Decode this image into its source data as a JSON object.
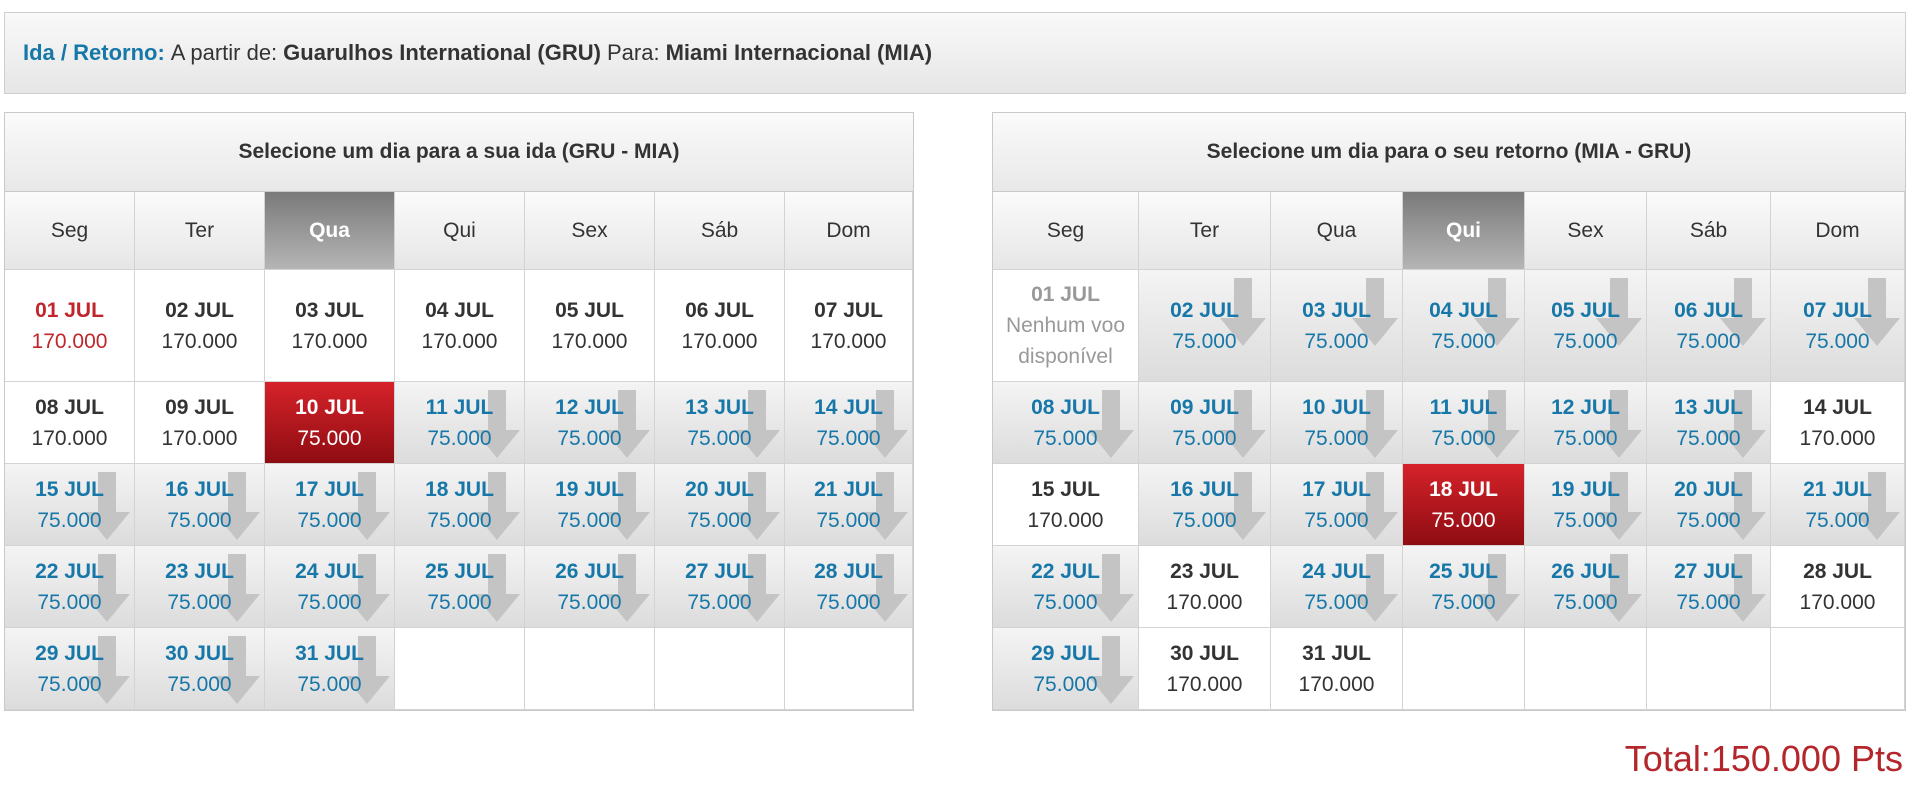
{
  "route": {
    "label": "Ida / Retorno:",
    "from_label": "A partir de:",
    "from": "Guarulhos International (GRU)",
    "to_label": "Para:",
    "to": "Miami Internacional (MIA)"
  },
  "outbound": {
    "title": "Selecione um dia para a sua ida (GRU - MIA)",
    "weekdays": [
      "Seg",
      "Ter",
      "Qua",
      "Qui",
      "Sex",
      "Sáb",
      "Dom"
    ],
    "selected_weekday": "Qua",
    "days": [
      {
        "date": "01 JUL",
        "price": "170.000",
        "status": "first"
      },
      {
        "date": "02 JUL",
        "price": "170.000",
        "status": "std"
      },
      {
        "date": "03 JUL",
        "price": "170.000",
        "status": "std"
      },
      {
        "date": "04 JUL",
        "price": "170.000",
        "status": "std"
      },
      {
        "date": "05 JUL",
        "price": "170.000",
        "status": "std"
      },
      {
        "date": "06 JUL",
        "price": "170.000",
        "status": "std"
      },
      {
        "date": "07 JUL",
        "price": "170.000",
        "status": "std"
      },
      {
        "date": "08 JUL",
        "price": "170.000",
        "status": "std"
      },
      {
        "date": "09 JUL",
        "price": "170.000",
        "status": "std"
      },
      {
        "date": "10 JUL",
        "price": "75.000",
        "status": "sel"
      },
      {
        "date": "11 JUL",
        "price": "75.000",
        "status": "cheap"
      },
      {
        "date": "12 JUL",
        "price": "75.000",
        "status": "cheap"
      },
      {
        "date": "13 JUL",
        "price": "75.000",
        "status": "cheap"
      },
      {
        "date": "14 JUL",
        "price": "75.000",
        "status": "cheap"
      },
      {
        "date": "15 JUL",
        "price": "75.000",
        "status": "cheap"
      },
      {
        "date": "16 JUL",
        "price": "75.000",
        "status": "cheap"
      },
      {
        "date": "17 JUL",
        "price": "75.000",
        "status": "cheap"
      },
      {
        "date": "18 JUL",
        "price": "75.000",
        "status": "cheap"
      },
      {
        "date": "19 JUL",
        "price": "75.000",
        "status": "cheap"
      },
      {
        "date": "20 JUL",
        "price": "75.000",
        "status": "cheap"
      },
      {
        "date": "21 JUL",
        "price": "75.000",
        "status": "cheap"
      },
      {
        "date": "22 JUL",
        "price": "75.000",
        "status": "cheap"
      },
      {
        "date": "23 JUL",
        "price": "75.000",
        "status": "cheap"
      },
      {
        "date": "24 JUL",
        "price": "75.000",
        "status": "cheap"
      },
      {
        "date": "25 JUL",
        "price": "75.000",
        "status": "cheap"
      },
      {
        "date": "26 JUL",
        "price": "75.000",
        "status": "cheap"
      },
      {
        "date": "27 JUL",
        "price": "75.000",
        "status": "cheap"
      },
      {
        "date": "28 JUL",
        "price": "75.000",
        "status": "cheap"
      },
      {
        "date": "29 JUL",
        "price": "75.000",
        "status": "cheap"
      },
      {
        "date": "30 JUL",
        "price": "75.000",
        "status": "cheap"
      },
      {
        "date": "31 JUL",
        "price": "75.000",
        "status": "cheap"
      }
    ]
  },
  "return": {
    "title": "Selecione um dia para o seu retorno (MIA - GRU)",
    "weekdays": [
      "Seg",
      "Ter",
      "Qua",
      "Qui",
      "Sex",
      "Sáb",
      "Dom"
    ],
    "selected_weekday": "Qui",
    "days": [
      {
        "date": "01 JUL",
        "price": "Nenhum voo disponível",
        "status": "na"
      },
      {
        "date": "02 JUL",
        "price": "75.000",
        "status": "cheap"
      },
      {
        "date": "03 JUL",
        "price": "75.000",
        "status": "cheap"
      },
      {
        "date": "04 JUL",
        "price": "75.000",
        "status": "cheap"
      },
      {
        "date": "05 JUL",
        "price": "75.000",
        "status": "cheap"
      },
      {
        "date": "06 JUL",
        "price": "75.000",
        "status": "cheap"
      },
      {
        "date": "07 JUL",
        "price": "75.000",
        "status": "cheap"
      },
      {
        "date": "08 JUL",
        "price": "75.000",
        "status": "cheap"
      },
      {
        "date": "09 JUL",
        "price": "75.000",
        "status": "cheap"
      },
      {
        "date": "10 JUL",
        "price": "75.000",
        "status": "cheap"
      },
      {
        "date": "11 JUL",
        "price": "75.000",
        "status": "cheap"
      },
      {
        "date": "12 JUL",
        "price": "75.000",
        "status": "cheap"
      },
      {
        "date": "13 JUL",
        "price": "75.000",
        "status": "cheap"
      },
      {
        "date": "14 JUL",
        "price": "170.000",
        "status": "std"
      },
      {
        "date": "15 JUL",
        "price": "170.000",
        "status": "std"
      },
      {
        "date": "16 JUL",
        "price": "75.000",
        "status": "cheap"
      },
      {
        "date": "17 JUL",
        "price": "75.000",
        "status": "cheap"
      },
      {
        "date": "18 JUL",
        "price": "75.000",
        "status": "sel"
      },
      {
        "date": "19 JUL",
        "price": "75.000",
        "status": "cheap"
      },
      {
        "date": "20 JUL",
        "price": "75.000",
        "status": "cheap"
      },
      {
        "date": "21 JUL",
        "price": "75.000",
        "status": "cheap"
      },
      {
        "date": "22 JUL",
        "price": "75.000",
        "status": "cheap"
      },
      {
        "date": "23 JUL",
        "price": "170.000",
        "status": "std"
      },
      {
        "date": "24 JUL",
        "price": "75.000",
        "status": "cheap"
      },
      {
        "date": "25 JUL",
        "price": "75.000",
        "status": "cheap"
      },
      {
        "date": "26 JUL",
        "price": "75.000",
        "status": "cheap"
      },
      {
        "date": "27 JUL",
        "price": "75.000",
        "status": "cheap"
      },
      {
        "date": "28 JUL",
        "price": "170.000",
        "status": "std"
      },
      {
        "date": "29 JUL",
        "price": "75.000",
        "status": "cheap"
      },
      {
        "date": "30 JUL",
        "price": "170.000",
        "status": "std"
      },
      {
        "date": "31 JUL",
        "price": "170.000",
        "status": "std"
      }
    ]
  },
  "total": "Total:150.000 Pts",
  "colors": {
    "accent_blue": "#1677a8",
    "selected_red": "#c0262b",
    "total_red": "#b3262b"
  },
  "icons": {
    "cheap_day": "down-arrow-icon"
  }
}
